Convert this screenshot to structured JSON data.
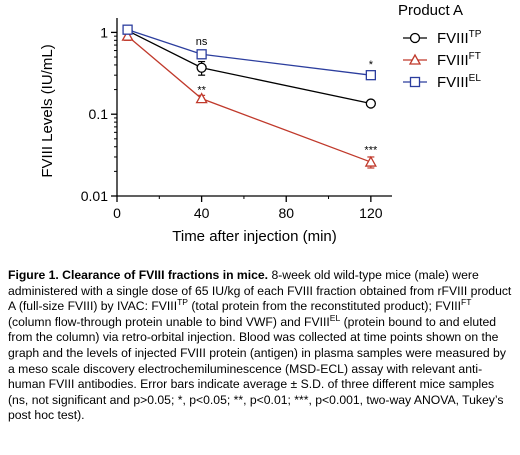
{
  "chart_data": {
    "type": "line",
    "xlabel": "Time after injection (min)",
    "ylabel": "FVIII Levels (IU/mL)",
    "xlim": [
      0,
      130
    ],
    "ylim": [
      0.01,
      1.5
    ],
    "yscale": "log",
    "xticks": [
      0,
      40,
      80,
      120
    ],
    "xtick_labels": [
      "0",
      "40",
      "80",
      "120"
    ],
    "yticks": [
      0.01,
      0.1,
      1
    ],
    "ytick_labels": [
      "0.01",
      "0.1",
      "1"
    ],
    "legend_title": "Product A",
    "legend_position": "top-right",
    "x": [
      5,
      40,
      120
    ],
    "series": [
      {
        "name": "FVIII",
        "sup": "TP",
        "marker": "circle",
        "color": "#000000",
        "values": [
          1.05,
          0.37,
          0.135
        ],
        "errors": [
          0.06,
          0.07,
          0.008
        ]
      },
      {
        "name": "FVIII",
        "sup": "FT",
        "marker": "triangle",
        "color": "#c0392b",
        "values": [
          0.9,
          0.155,
          0.026
        ],
        "errors": [
          0.1,
          0.015,
          0.004
        ]
      },
      {
        "name": "FVIII",
        "sup": "EL",
        "marker": "square",
        "color": "#2c3e9e",
        "values": [
          1.08,
          0.54,
          0.3
        ],
        "errors": [
          0.06,
          0.04,
          0.025
        ]
      }
    ],
    "annotations": [
      {
        "text": "ns",
        "x": 40,
        "y": 0.78
      },
      {
        "text": "**",
        "x": 40,
        "y": 0.2
      },
      {
        "text": "*",
        "x": 120,
        "y": 0.41
      },
      {
        "text": "***",
        "x": 120,
        "y": 0.037
      }
    ]
  },
  "caption": {
    "title": "Figure 1. Clearance of FVIII fractions in mice.",
    "p1": " 8-week old wild-type mice (male) were administered with a single dose of 65 IU/kg of each FVIII fraction obtained from rFVIII product A (full-size FVIII) by IVAC: FVIII",
    "sup1": "TP",
    "p2": " (total protein from the reconstituted product); FVIII",
    "sup2": "FT",
    "p3": " (column flow-through protein unable to bind VWF) and FVIII",
    "sup3": "EL",
    "p4": " (protein bound to and eluted from the column) via retro-orbital injection. Blood was collected at time points shown on the graph and the levels of injected FVIII protein (antigen) in plasma samples were measured by a meso scale discovery electrochemiluminescence (MSD-ECL) assay with relevant anti-human FVIII antibodies. Error bars indicate average ± S.D. of three different mice samples (ns, not significant and p>0.05; *, p<0.05; **, p<0.01; ***, p<0.001, two-way ANOVA, Tukey’s post hoc test)."
  }
}
